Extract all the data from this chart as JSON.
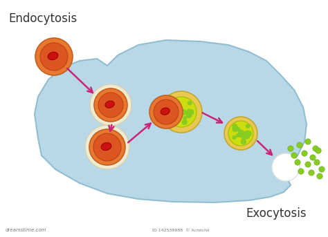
{
  "bg_color": "#ffffff",
  "cell_color": "#b8d8e8",
  "cell_edge_color": "#90bdd0",
  "title_endocytosis": "Endocytosis",
  "title_exocytosis": "Exocytosis",
  "arrow_color": "#cc2277",
  "dot_color": "#88cc22",
  "dot_color_dark": "#66aa22",
  "watermark_text": "ID 142538988  © Achiichii",
  "dreamstime_text": "dreamstime.com",
  "outer_orange": "#e87830",
  "inner_orange": "#dd5522",
  "nucleus_red": "#cc1111",
  "cream_ring": "#f0ead0",
  "yellow_outer": "#e8d840",
  "yellow_inner": "#ccdd10",
  "lyso_outer": "#e8c850",
  "lyso_inner": "#d4b830"
}
